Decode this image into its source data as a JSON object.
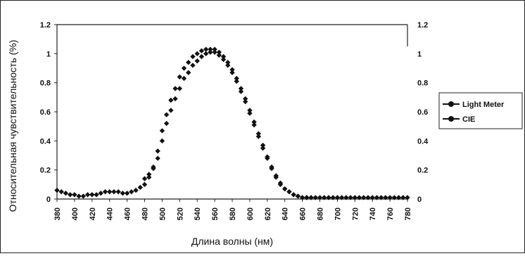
{
  "chart_data": {
    "type": "scatter",
    "xlabel": "Длина волны (нм)",
    "ylabel": "Относительная чувствительность (%)",
    "xlim": [
      380,
      780
    ],
    "ylim": [
      0,
      1.2
    ],
    "y2lim": [
      0,
      1.2
    ],
    "x_ticks": [
      380,
      400,
      420,
      440,
      460,
      480,
      500,
      520,
      540,
      560,
      580,
      600,
      620,
      640,
      660,
      680,
      700,
      720,
      740,
      760,
      780
    ],
    "y_ticks": [
      0,
      0.2,
      0.4,
      0.6,
      0.8,
      1,
      1.2
    ],
    "y_tick_labels": [
      "0",
      "0.2",
      "0.4",
      "0.6",
      "0.8",
      "1",
      "1.2"
    ],
    "grid": false,
    "legend_position": "right",
    "series": [
      {
        "name": "Light Meter",
        "marker": "circle",
        "x": [
          380,
          385,
          390,
          395,
          400,
          405,
          410,
          415,
          420,
          425,
          430,
          435,
          440,
          445,
          450,
          455,
          460,
          465,
          470,
          475,
          480,
          485,
          490,
          495,
          500,
          505,
          510,
          515,
          520,
          525,
          530,
          535,
          540,
          545,
          550,
          555,
          560,
          565,
          570,
          575,
          580,
          585,
          590,
          595,
          600,
          605,
          610,
          615,
          620,
          625,
          630,
          635,
          640,
          645,
          650,
          655,
          660,
          665,
          670,
          675,
          680,
          685,
          690,
          695,
          700,
          705,
          710,
          715,
          720,
          725,
          730,
          735,
          740,
          745,
          750,
          755,
          760,
          765,
          770,
          775,
          780
        ],
        "values": [
          0.06,
          0.05,
          0.04,
          0.03,
          0.03,
          0.02,
          0.02,
          0.03,
          0.03,
          0.03,
          0.04,
          0.05,
          0.05,
          0.05,
          0.05,
          0.04,
          0.04,
          0.05,
          0.06,
          0.08,
          0.1,
          0.15,
          0.22,
          0.33,
          0.47,
          0.58,
          0.68,
          0.76,
          0.84,
          0.9,
          0.94,
          0.98,
          1.0,
          1.02,
          1.03,
          1.03,
          1.03,
          1.01,
          0.98,
          0.94,
          0.89,
          0.83,
          0.76,
          0.69,
          0.61,
          0.53,
          0.45,
          0.37,
          0.29,
          0.22,
          0.16,
          0.11,
          0.07,
          0.05,
          0.03,
          0.02,
          0.01,
          0.01,
          0.01,
          0.01,
          0.01,
          0.01,
          0.01,
          0.01,
          0.01,
          0.01,
          0.01,
          0.01,
          0.01,
          0.01,
          0.01,
          0.01,
          0.01,
          0.01,
          0.01,
          0.01,
          0.01,
          0.01,
          0.01,
          0.01,
          0.01
        ]
      },
      {
        "name": "CIE",
        "marker": "circle",
        "x": [
          480,
          485,
          490,
          495,
          500,
          505,
          510,
          515,
          520,
          525,
          530,
          535,
          540,
          545,
          550,
          555,
          560,
          565,
          570,
          575,
          580,
          585,
          590,
          595,
          600,
          605,
          610,
          615,
          620,
          625,
          630,
          635,
          640,
          645,
          650,
          655,
          660,
          665,
          670
        ],
        "values": [
          0.14,
          0.17,
          0.21,
          0.28,
          0.4,
          0.52,
          0.61,
          0.69,
          0.76,
          0.83,
          0.87,
          0.92,
          0.95,
          0.98,
          1.0,
          1.01,
          1.01,
          0.99,
          0.96,
          0.92,
          0.87,
          0.81,
          0.74,
          0.67,
          0.59,
          0.51,
          0.43,
          0.35,
          0.28,
          0.21,
          0.15,
          0.1,
          0.07,
          0.05,
          0.03,
          0.02,
          0.01,
          0.01,
          0.01
        ]
      }
    ]
  }
}
